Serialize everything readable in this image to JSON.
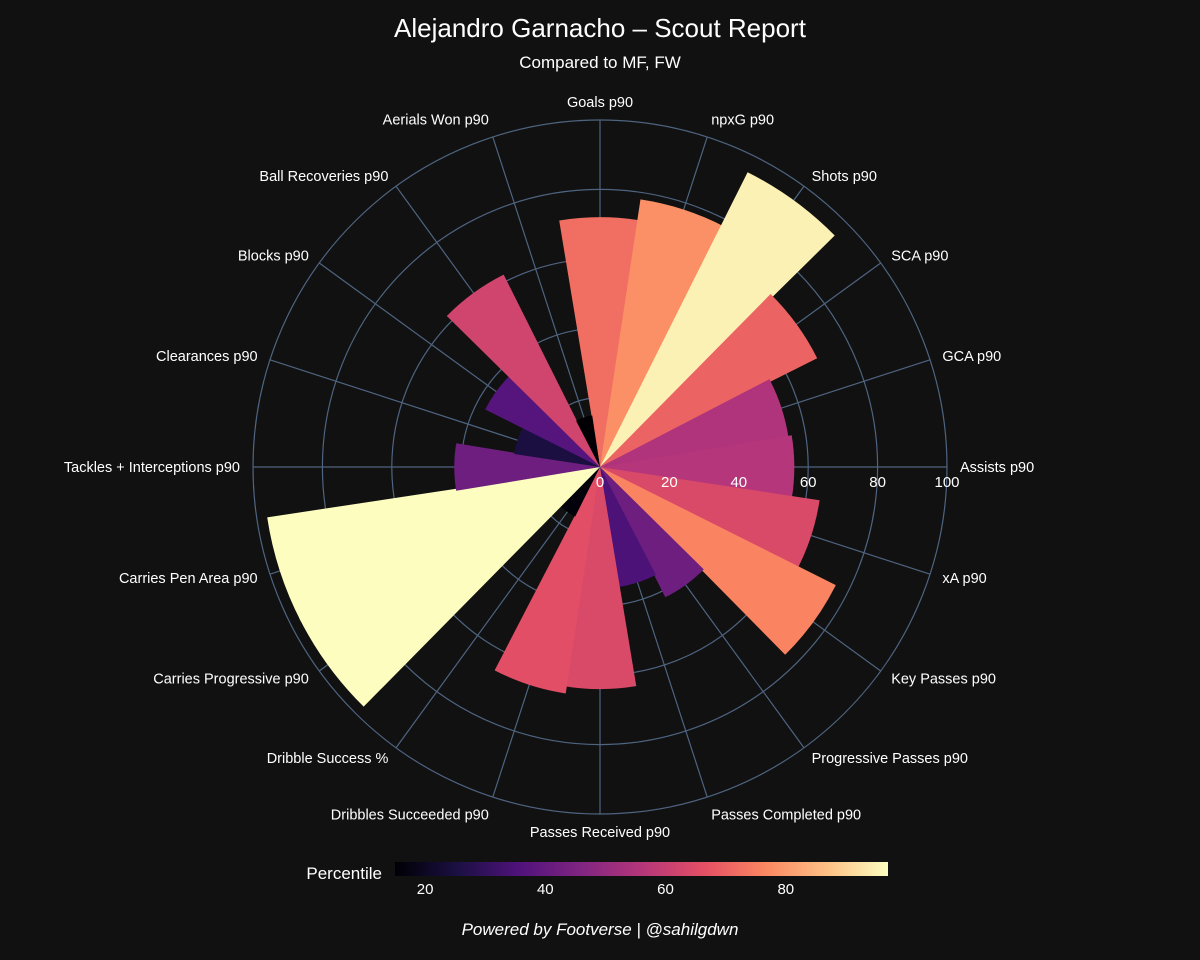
{
  "chart_data": {
    "type": "polar-bar",
    "title": "Alejandro Garnacho – Scout Report",
    "subtitle": "Compared to MF, FW",
    "footer": "Powered by Footverse | @sahilgdwn",
    "radial_range": [
      0,
      100
    ],
    "radial_ticks": [
      0,
      20,
      40,
      60,
      80,
      100
    ],
    "grid": true,
    "colorscale": "magma",
    "colorbar": {
      "title": "Percentile",
      "range": [
        15,
        97
      ],
      "ticks": [
        20,
        40,
        60,
        80
      ],
      "placement": "bottom"
    },
    "categories": [
      "Goals p90",
      "npxG p90",
      "Shots p90",
      "SCA p90",
      "GCA p90",
      "Assists p90",
      "xA p90",
      "Key Passes p90",
      "Progressive Passes p90",
      "Passes Completed p90",
      "Passes Received p90",
      "Dribbles Succeeded p90",
      "Dribble Success %",
      "Carries Progressive p90",
      "Carries Pen Area p90",
      "Tackles + Interceptions p90",
      "Clearances p90",
      "Blocks p90",
      "Ball Recoveries p90",
      "Aerials Won p90"
    ],
    "values": [
      72,
      78,
      95,
      70,
      55,
      56,
      64,
      76,
      42,
      35,
      64,
      66,
      16,
      97,
      97,
      42,
      25,
      37,
      62,
      15
    ]
  }
}
